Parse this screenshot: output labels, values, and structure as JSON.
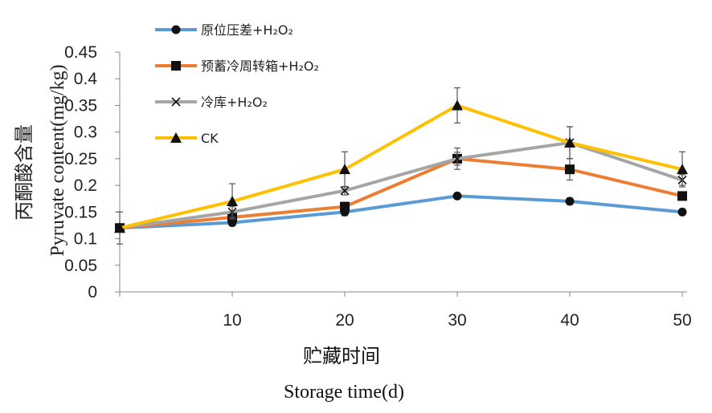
{
  "chart_data": {
    "type": "line",
    "x": [
      0,
      10,
      20,
      30,
      40,
      50
    ],
    "x_tick_labels": [
      "10",
      "20",
      "30",
      "40",
      "50"
    ],
    "y_tick_labels": [
      "0",
      "0.05",
      "0.1",
      "0.15",
      "0.2",
      "0.25",
      "0.3",
      "0.35",
      "0.4",
      "0.45"
    ],
    "ylim": [
      0,
      0.45
    ],
    "ylabel_cn": "丙酮酸含量",
    "ylabel_en": "Pyruvate content(mg/kg)",
    "xlabel_cn": "贮藏时间",
    "xlabel_en": "Storage time(d)",
    "legend_position": "top-left",
    "series": [
      {
        "name": "原位压差+H₂O₂",
        "color": "#5b9bd5",
        "marker": "circle",
        "values": [
          0.12,
          0.13,
          0.15,
          0.18,
          0.17,
          0.15
        ],
        "errors": [
          0.005,
          0.006,
          0.007,
          0.005,
          0.006,
          0.005
        ]
      },
      {
        "name": "预蓄冷周转箱+H₂O₂",
        "color": "#ed7d31",
        "marker": "square",
        "values": [
          0.12,
          0.14,
          0.16,
          0.25,
          0.23,
          0.18
        ],
        "errors": [
          0.005,
          0.008,
          0.008,
          0.012,
          0.02,
          0.008
        ]
      },
      {
        "name": "冷库+H₂O₂",
        "color": "#a5a5a5",
        "marker": "x",
        "values": [
          0.12,
          0.15,
          0.19,
          0.25,
          0.28,
          0.21
        ],
        "errors": [
          0.005,
          0.01,
          0.008,
          0.02,
          0.03,
          0.01
        ]
      },
      {
        "name": "CK",
        "color": "#ffc000",
        "marker": "triangle",
        "values": [
          0.12,
          0.17,
          0.23,
          0.35,
          0.28,
          0.23
        ],
        "errors": [
          0.03,
          0.033,
          0.033,
          0.033,
          0.03,
          0.033
        ]
      }
    ]
  }
}
